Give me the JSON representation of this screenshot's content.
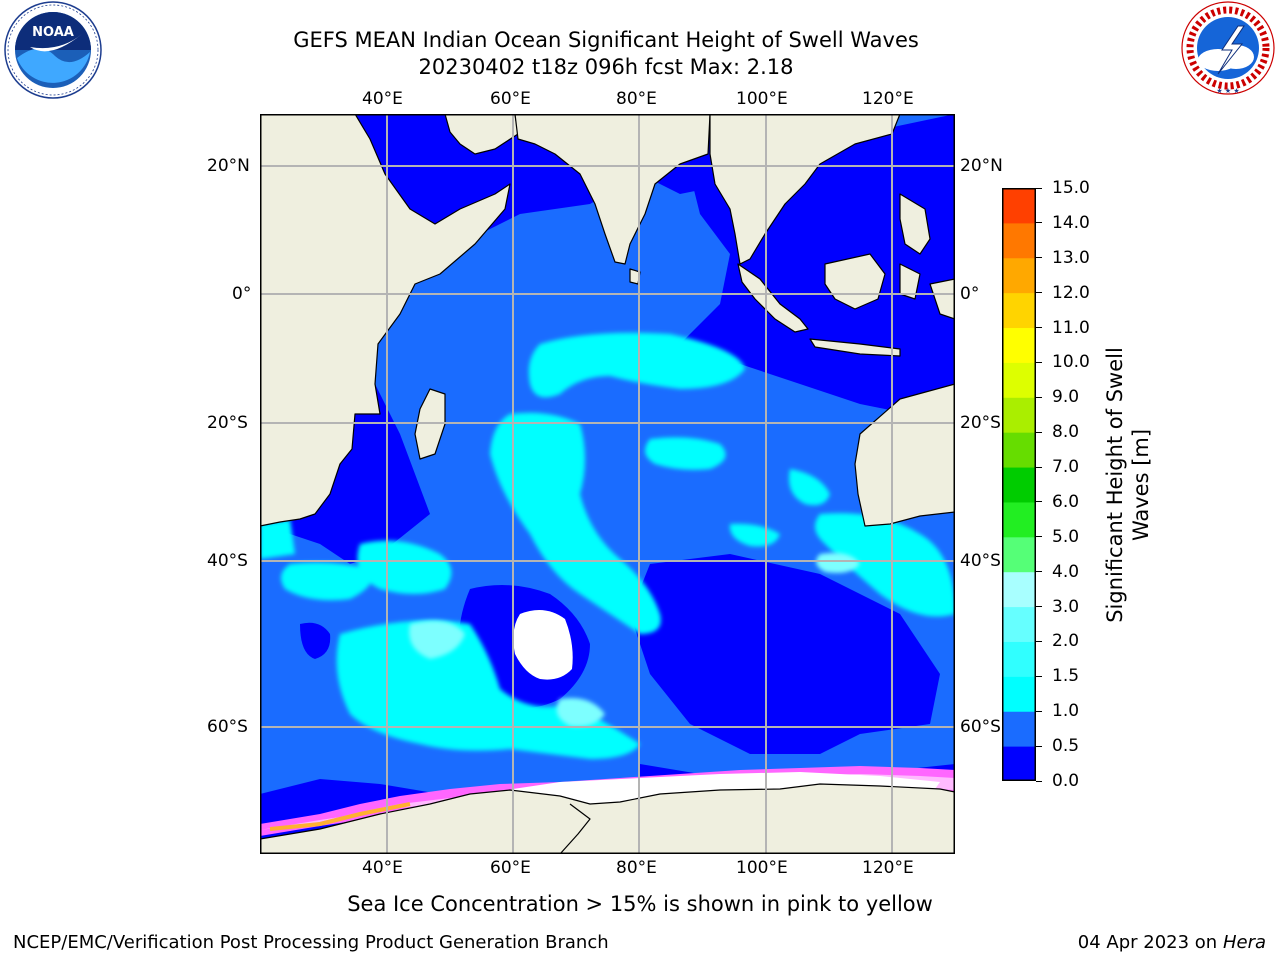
{
  "header": {
    "title_line1": "GEFS MEAN Indian Ocean Significant Height of Swell Waves",
    "title_line2": "20230402 t18z 096h fcst   Max: 2.18"
  },
  "logos": {
    "left": {
      "icon": "noaa-logo",
      "text": "NOAA",
      "ring_text": "NATIONAL OCEANIC AND ATMOSPHERIC ADMINISTRATION · U.S. DEPARTMENT OF COMMERCE"
    },
    "right": {
      "icon": "nws-logo",
      "ring_text": "NATIONAL WEATHER SERVICE"
    }
  },
  "map": {
    "lon_ticks": [
      "40°E",
      "60°E",
      "80°E",
      "100°E",
      "120°E"
    ],
    "lat_ticks_left": [
      "20°N",
      "0°",
      "20°S",
      "40°S",
      "60°S"
    ],
    "lat_ticks_right": [
      "20°N",
      "0°",
      "20°S",
      "40°S",
      "60°S"
    ],
    "colors": {
      "land": "#efefdf",
      "grid": "#b4b4b4",
      "ice_pink": "#ff66ff",
      "ice_orange": "#ffb030",
      "ice_yellow": "#ffe23a"
    }
  },
  "colorbar": {
    "label_line1": "Significant Height of Swell",
    "label_line2": "Waves [m]",
    "ticks": [
      "0.0",
      "0.5",
      "1.0",
      "1.5",
      "2.0",
      "3.0",
      "4.0",
      "5.0",
      "6.0",
      "7.0",
      "8.0",
      "9.0",
      "10.0",
      "11.0",
      "12.0",
      "13.0",
      "14.0",
      "15.0"
    ],
    "colors": [
      "#0000ff",
      "#1a6cff",
      "#00ffff",
      "#30ffff",
      "#66ffff",
      "#a8ffff",
      "#55ff77",
      "#22ee22",
      "#00cc00",
      "#66dd00",
      "#aaee00",
      "#ddff00",
      "#ffff00",
      "#ffd400",
      "#ffa800",
      "#ff7800",
      "#ff4000",
      "#ff0000"
    ]
  },
  "caption": "Sea Ice Concentration > 15% is shown in pink to yellow",
  "footer": {
    "left": "NCEP/EMC/Verification Post Processing Product Generation Branch",
    "right_prefix": "04 Apr 2023 on ",
    "right_host": "Hera"
  }
}
